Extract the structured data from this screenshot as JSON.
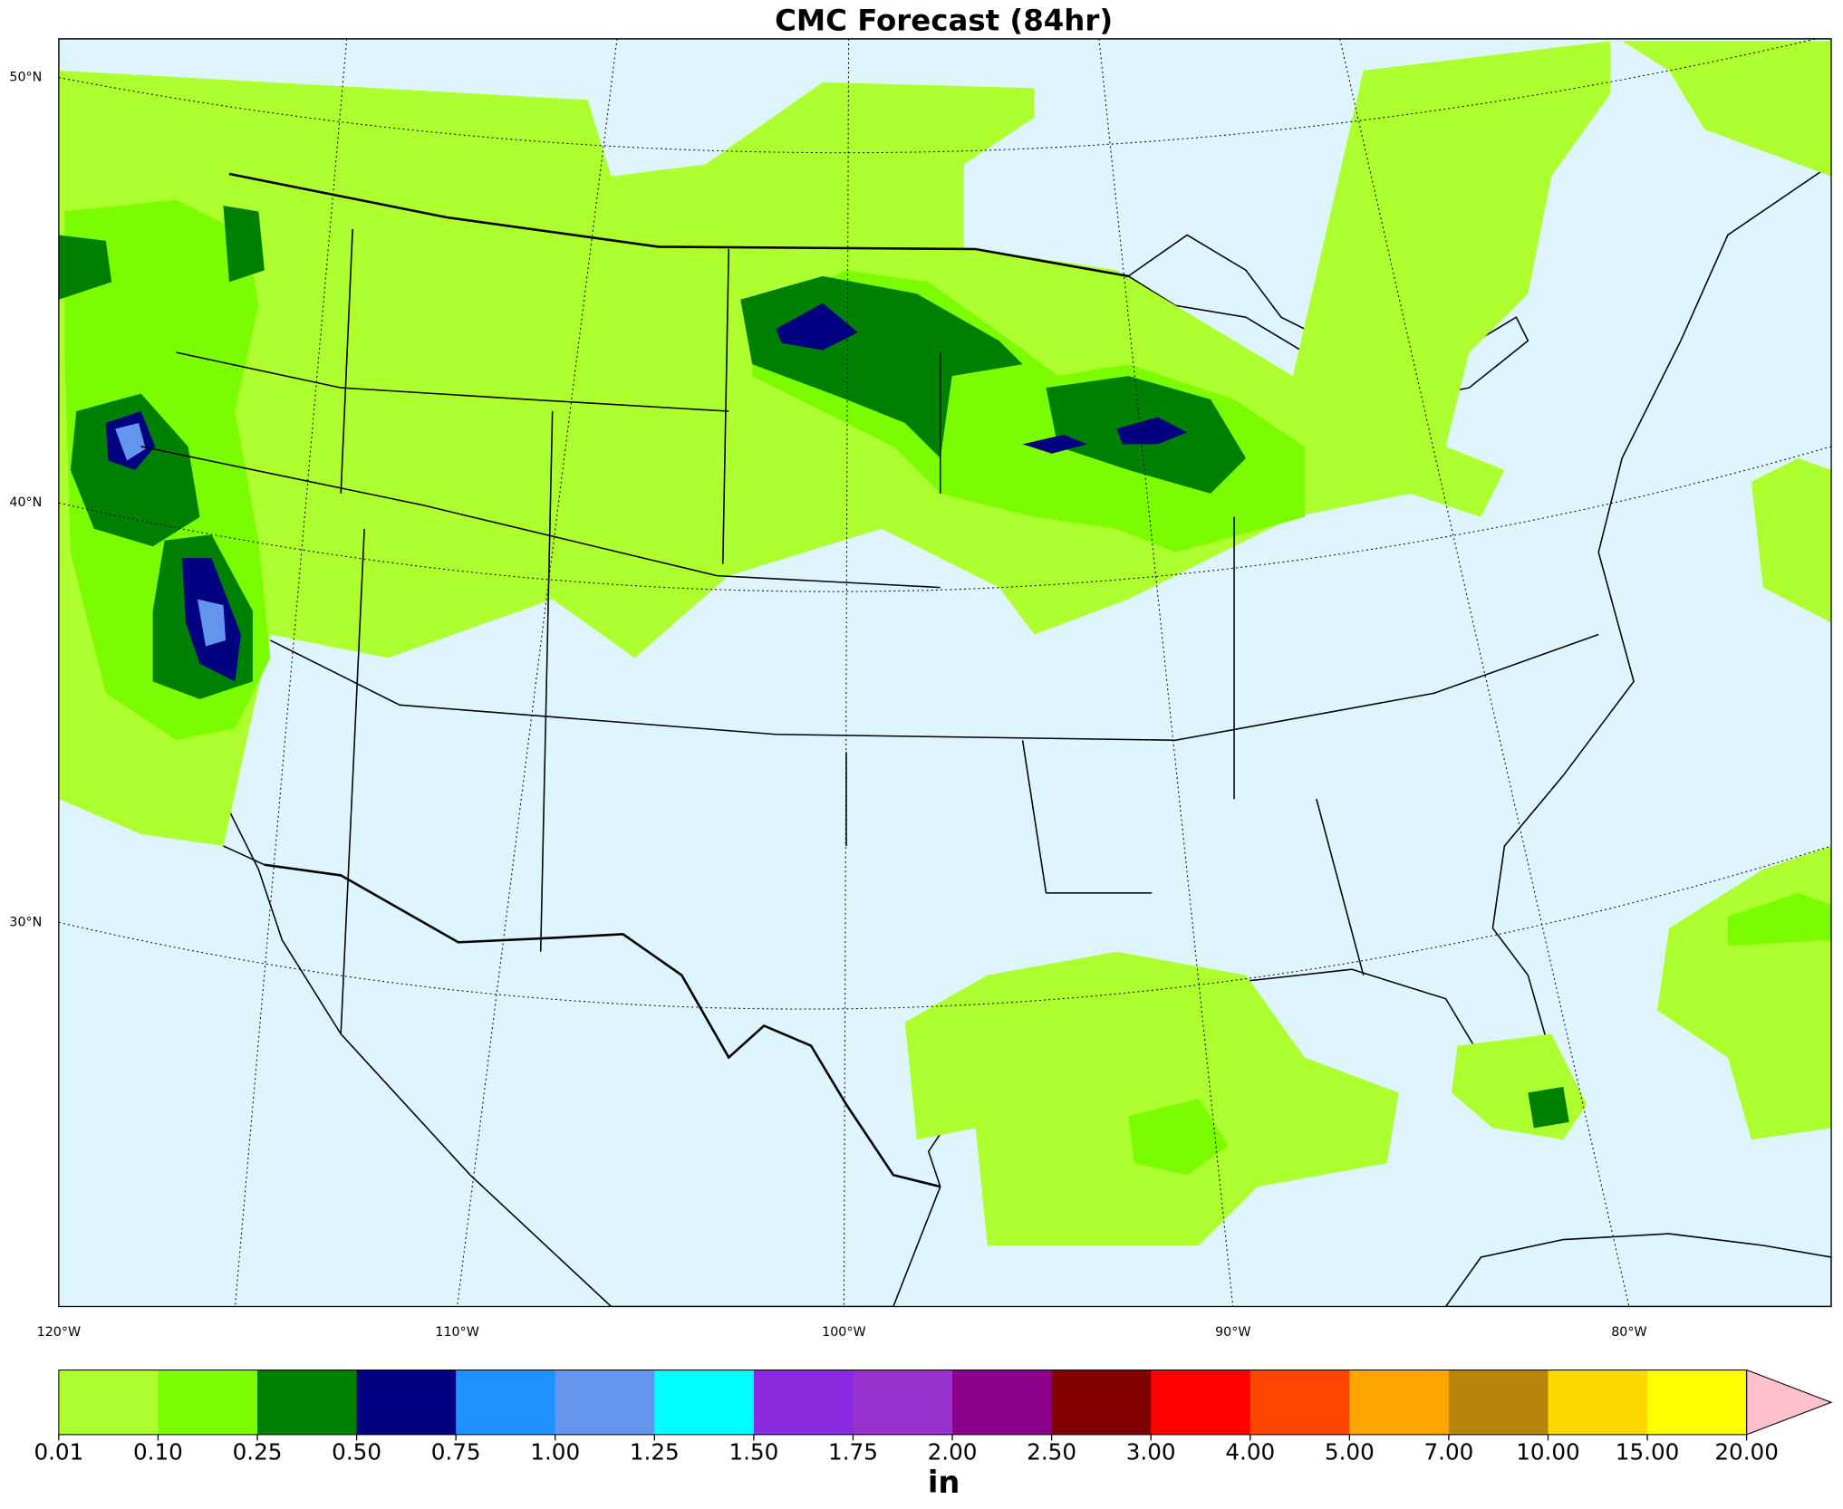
{
  "title": "CMC Forecast (84hr)",
  "lat_labels": [
    "50°N",
    "40°N",
    "30°N"
  ],
  "lon_labels": [
    "120°W",
    "110°W",
    "100°W",
    "90°W",
    "80°W"
  ],
  "colorbar": {
    "levels": [
      0.01,
      {
        "value": 0.1,
        "label": "0.10"
      },
      0.25,
      {
        "value": 0.5,
        "label": "0.50"
      },
      0.75,
      {
        "value": 1,
        "label": "1.00"
      },
      1.25,
      {
        "value": 1.5,
        "label": "1.50"
      },
      1.75,
      {
        "value": 2,
        "label": "2.00"
      },
      {
        "value": 2.5,
        "label": "2.50"
      },
      {
        "value": 3,
        "label": "3.00"
      },
      {
        "value": 4,
        "label": "4.00"
      },
      {
        "value": 5,
        "label": "5.00"
      },
      {
        "value": 7,
        "label": "7.00"
      },
      {
        "value": 10,
        "label": "10.00"
      },
      {
        "value": 15,
        "label": "15.00"
      },
      {
        "value": 20,
        "label": "20.00"
      }
    ],
    "colors": [
      "#adff2f",
      "#7cfc00",
      "#008000",
      "#000080",
      "#1e90ff",
      "#6495ed",
      "#00ffff",
      "#8a2be2",
      "#9932cc",
      "#8b008b",
      "#800000",
      "#ff0000",
      "#ff4500",
      "#ffa500",
      "#b8860b",
      "#ffd700",
      "#ffff00"
    ],
    "extend_color": "#ffc0cb",
    "label": "in"
  }
}
